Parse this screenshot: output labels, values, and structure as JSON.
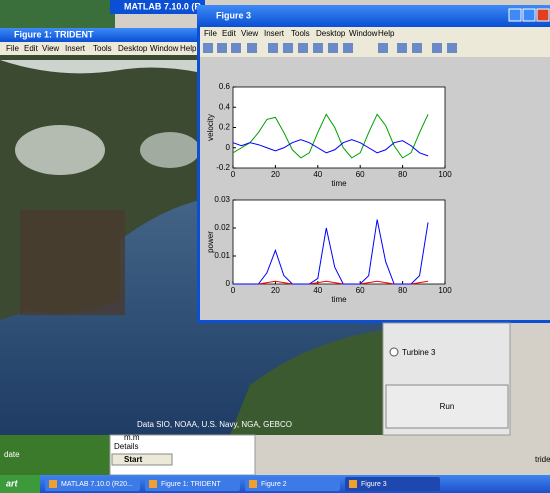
{
  "matlab_title": "MATLAB 7.10.0 (R",
  "figure1": {
    "title": "Figure 1: TRIDENT",
    "menu": [
      "File",
      "Edit",
      "View",
      "Insert",
      "Tools",
      "Desktop",
      "Window",
      "Help"
    ],
    "attribution": "Data SIO, NOAA, U.S. Navy, NGA, GEBCO"
  },
  "figure3": {
    "title": "Figure 3",
    "menu": [
      "File",
      "Edit",
      "View",
      "Insert",
      "Tools",
      "Desktop",
      "Window",
      "Help"
    ]
  },
  "panel": {
    "radio": "Turbine 3",
    "button": "Run"
  },
  "below": {
    "left": "date",
    "file": "m.m",
    "details": "Details",
    "start": "Start",
    "right": "tride"
  },
  "taskbar": {
    "start": "art",
    "items": [
      "MATLAB 7.10.0 (R20...",
      "Figure 1: TRIDENT",
      "Figure 2",
      "Figure 3"
    ]
  },
  "chart_data": [
    {
      "type": "line",
      "x_label": "time",
      "y_label": "velocity",
      "x": [
        0,
        4,
        8,
        12,
        16,
        20,
        24,
        28,
        32,
        36,
        40,
        44,
        48,
        52,
        56,
        60,
        64,
        68,
        72,
        76,
        80,
        84,
        88,
        92
      ],
      "series": [
        {
          "color": "#00a000",
          "values": [
            -0.05,
            0.0,
            0.05,
            0.15,
            0.28,
            0.3,
            0.15,
            -0.02,
            -0.1,
            -0.05,
            0.15,
            0.33,
            0.2,
            0.0,
            -0.1,
            -0.05,
            0.15,
            0.33,
            0.22,
            0.02,
            -0.1,
            -0.05,
            0.15,
            0.33
          ]
        },
        {
          "color": "#0000ff",
          "values": [
            0.05,
            0.02,
            0.05,
            0.03,
            0.0,
            -0.03,
            0.0,
            0.05,
            0.08,
            0.05,
            0.0,
            -0.05,
            -0.02,
            0.05,
            0.08,
            0.05,
            0.0,
            -0.05,
            -0.02,
            0.05,
            0.07,
            0.02,
            -0.05,
            -0.08
          ]
        }
      ],
      "xlim": [
        0,
        100
      ],
      "xticks": [
        0,
        20,
        40,
        60,
        80,
        100
      ],
      "ylim": [
        -0.2,
        0.6
      ],
      "yticks": [
        -0.2,
        0,
        0.2,
        0.4,
        0.6
      ]
    },
    {
      "type": "line",
      "x_label": "time",
      "y_label": "power",
      "x": [
        0,
        4,
        8,
        12,
        16,
        20,
        24,
        28,
        32,
        36,
        40,
        44,
        48,
        52,
        56,
        60,
        64,
        68,
        72,
        76,
        80,
        84,
        88,
        92
      ],
      "series": [
        {
          "color": "#ff0000",
          "values": [
            0,
            0,
            0,
            0,
            0.0005,
            0.001,
            0.0005,
            0,
            0,
            0,
            0.0005,
            0.001,
            0.0005,
            0,
            0,
            0,
            0.0005,
            0.001,
            0.0005,
            0,
            0,
            0,
            0.0005,
            0.001
          ]
        },
        {
          "color": "#0000ff",
          "values": [
            0,
            0,
            0,
            0,
            0.004,
            0.012,
            0.003,
            0,
            0,
            0,
            0.002,
            0.02,
            0.006,
            0,
            0,
            0,
            0.003,
            0.023,
            0.008,
            0,
            0,
            0,
            0.003,
            0.022
          ]
        }
      ],
      "xlim": [
        0,
        100
      ],
      "xticks": [
        0,
        20,
        40,
        60,
        80,
        100
      ],
      "ylim": [
        0,
        0.03
      ],
      "yticks": [
        0,
        0.01,
        0.02,
        0.03
      ]
    }
  ]
}
